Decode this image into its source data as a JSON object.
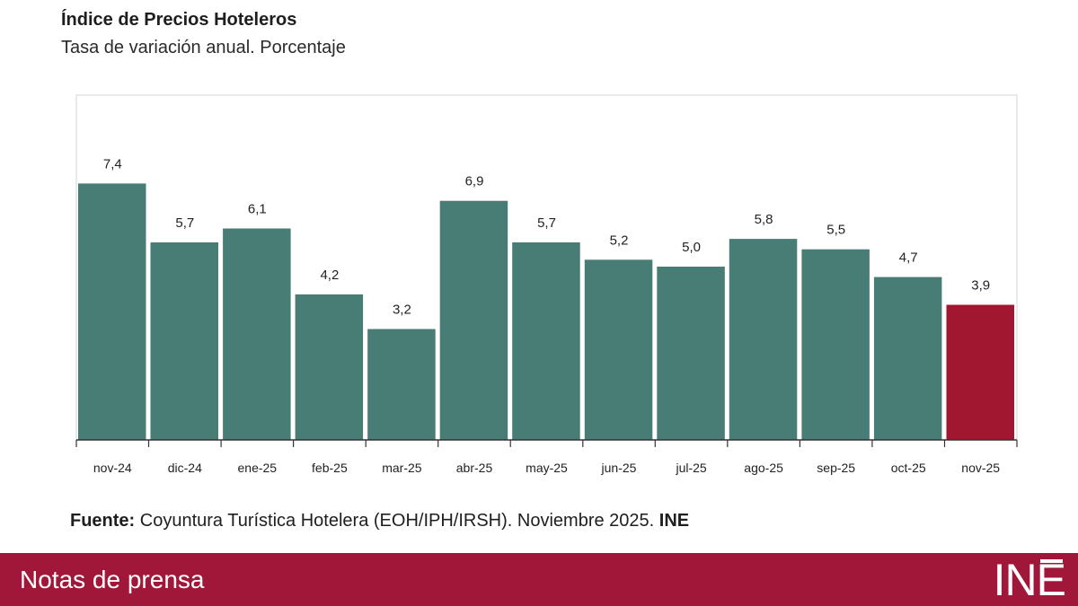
{
  "chart_data": {
    "type": "bar",
    "title": "Índice de Precios Hoteleros",
    "subtitle": "Tasa de variación anual. Porcentaje",
    "categories": [
      "nov-24",
      "dic-24",
      "ene-25",
      "feb-25",
      "mar-25",
      "abr-25",
      "may-25",
      "jun-25",
      "jul-25",
      "ago-25",
      "sep-25",
      "oct-25",
      "nov-25"
    ],
    "values": [
      7.4,
      5.7,
      6.1,
      4.2,
      3.2,
      6.9,
      5.7,
      5.2,
      5.0,
      5.8,
      5.5,
      4.7,
      3.9
    ],
    "value_labels": [
      "7,4",
      "5,7",
      "6,1",
      "4,2",
      "3,2",
      "6,9",
      "5,7",
      "5,2",
      "5,0",
      "5,8",
      "5,5",
      "4,7",
      "3,9"
    ],
    "ylim": [
      0,
      10
    ],
    "grid": false,
    "legend": "none",
    "colors": {
      "bar": "#477d74",
      "highlight": "#a0172f"
    },
    "highlight_index": 12
  },
  "source": {
    "label": "Fuente:",
    "text": " Coyuntura Turística Hotelera (EOH/IPH/IRSH). Noviembre 2025. ",
    "org": "INE"
  },
  "footer": {
    "text": "Notas de prensa",
    "logo": "INE",
    "background": "#a1173a"
  }
}
